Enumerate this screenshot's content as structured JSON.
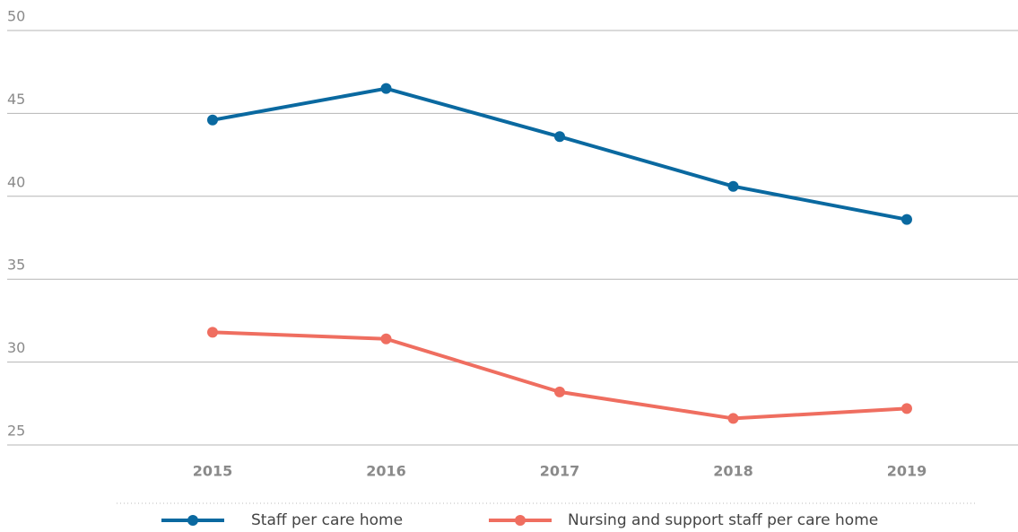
{
  "chart_data": {
    "type": "line",
    "categories": [
      "2015",
      "2016",
      "2017",
      "2018",
      "2019"
    ],
    "series": [
      {
        "name": "Staff per care home",
        "color": "#0a69a0",
        "values": [
          44.6,
          46.5,
          43.6,
          40.6,
          38.6
        ]
      },
      {
        "name": "Nursing and support staff per care home",
        "color": "#ef6e60",
        "values": [
          31.8,
          31.4,
          28.2,
          26.6,
          27.2
        ]
      }
    ],
    "ylim": [
      25,
      50
    ],
    "yticks": [
      25,
      30,
      35,
      40,
      45,
      50
    ],
    "grid": true
  }
}
